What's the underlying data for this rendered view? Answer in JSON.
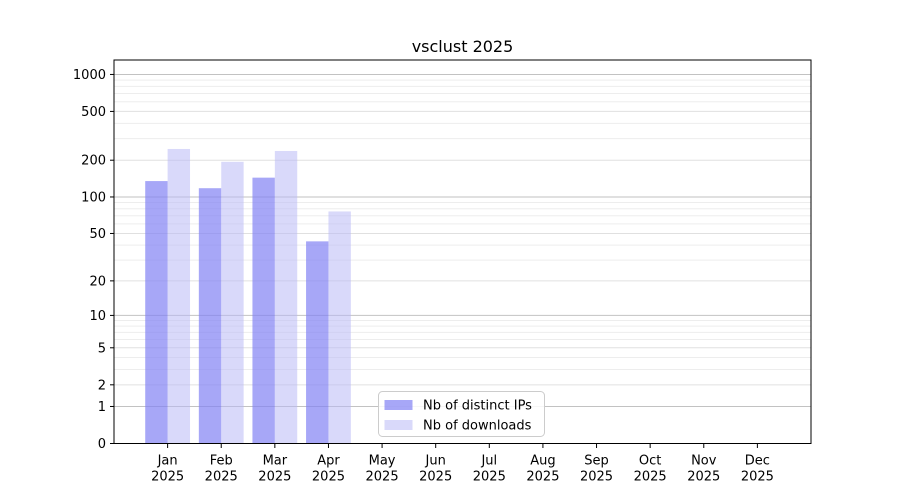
{
  "chart_data": {
    "type": "bar",
    "title": "vsclust 2025",
    "x": {
      "categories": [
        "Jan",
        "Feb",
        "Mar",
        "Apr",
        "May",
        "Jun",
        "Jul",
        "Aug",
        "Sep",
        "Oct",
        "Nov",
        "Dec"
      ],
      "year_label": "2025"
    },
    "y": {
      "scale": "log1p",
      "ticks": [
        0,
        1,
        2,
        5,
        10,
        20,
        50,
        100,
        200,
        500,
        1000
      ],
      "lim": [
        0,
        1300
      ],
      "grid": true
    },
    "series": [
      {
        "name": "Nb of distinct IPs",
        "color": "rgba(130,130,243,0.70)",
        "values": [
          135,
          118,
          144,
          43,
          null,
          null,
          null,
          null,
          null,
          null,
          null,
          null
        ]
      },
      {
        "name": "Nb of downloads",
        "color": "rgba(186,186,246,0.55)",
        "values": [
          247,
          194,
          238,
          76,
          null,
          null,
          null,
          null,
          null,
          null,
          null,
          null
        ]
      }
    ],
    "legend": {
      "position": "lower center"
    },
    "grid_colors": {
      "major": "#c2c2c2",
      "mid": "#e0e0e0",
      "minor": "#ededed"
    },
    "axis_color": "#000000"
  }
}
